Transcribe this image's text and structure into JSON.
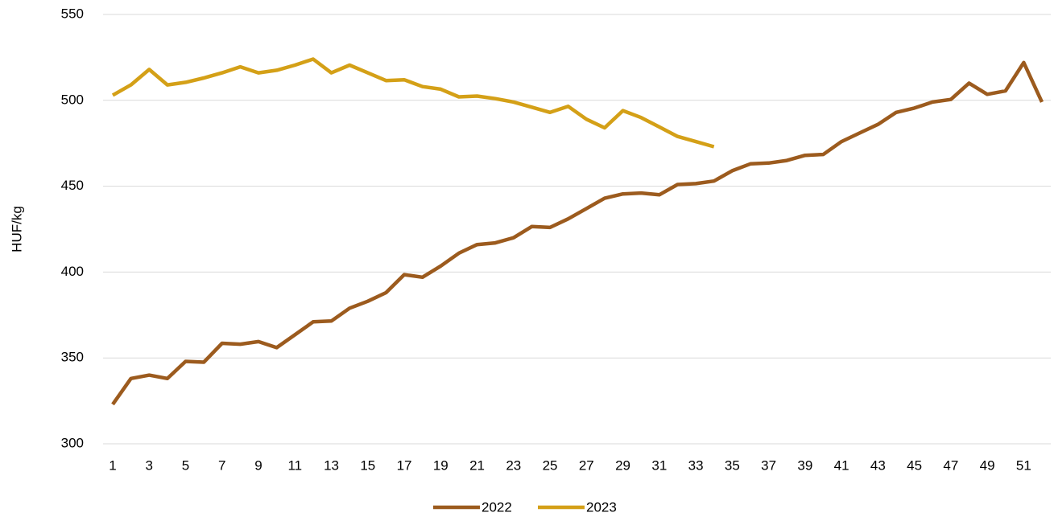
{
  "chart_data": {
    "type": "line",
    "y_label": "HUF/kg",
    "categories": [
      1,
      null,
      3,
      null,
      5,
      null,
      7,
      null,
      9,
      null,
      11,
      null,
      13,
      null,
      15,
      null,
      17,
      null,
      19,
      null,
      21,
      null,
      23,
      null,
      25,
      null,
      27,
      null,
      29,
      null,
      31,
      null,
      33,
      null,
      35,
      null,
      37,
      null,
      39,
      null,
      41,
      null,
      43,
      null,
      45,
      null,
      47,
      null,
      49,
      null,
      51,
      null
    ],
    "series": [
      {
        "name": "2022",
        "color": "#9c5b1e",
        "values": [
          323,
          338,
          340,
          338,
          348,
          347.5,
          358.5,
          358,
          359.5,
          356,
          363.5,
          371,
          371.5,
          379,
          383,
          388,
          398.5,
          397,
          403.5,
          411,
          416,
          417,
          420,
          426.5,
          426,
          431,
          437,
          443,
          445.5,
          446,
          445,
          451,
          451.5,
          453,
          459,
          463,
          463.5,
          465,
          468,
          468.5,
          476,
          481,
          486,
          493,
          495.5,
          499,
          500.5,
          510,
          503.5,
          505.5,
          522,
          499
        ]
      },
      {
        "name": "2023",
        "color": "#d4a017",
        "values": [
          503,
          509,
          518,
          509,
          510.5,
          513,
          516,
          519.5,
          516,
          517.5,
          520.5,
          524,
          516,
          520.5,
          516,
          511.5,
          512,
          508,
          506.5,
          502,
          502.5,
          501,
          499,
          496,
          493,
          496.5,
          489,
          484,
          494,
          490,
          484.5,
          479,
          476,
          473,
          null,
          null,
          null,
          null,
          null,
          null,
          null,
          null,
          null,
          null,
          null,
          null,
          null,
          null,
          null,
          null,
          null,
          null
        ]
      }
    ],
    "ylim": [
      300,
      550
    ],
    "yticks": [
      300,
      350,
      400,
      450,
      500,
      550
    ],
    "grid": true,
    "legend": "bottom"
  }
}
